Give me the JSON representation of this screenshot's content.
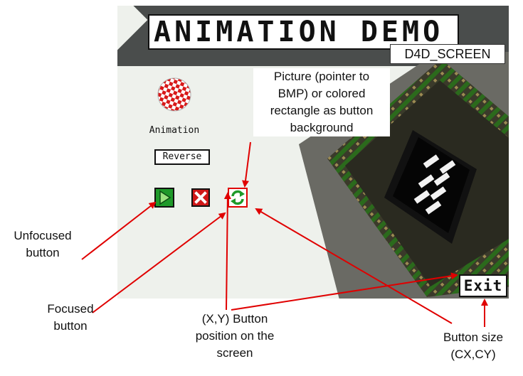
{
  "screen": {
    "title": "ANIMATION DEMO",
    "screen_name": "D4D_SCREEN",
    "animation_label": "Animation",
    "reverse_button": "Reverse",
    "exit_button": "Exit"
  },
  "icons": {
    "ball": "checkered-ball-icon",
    "play": "play-icon",
    "stop": "stop-icon",
    "reverse": "reverse-icon",
    "chip": "processor-chip-picture"
  },
  "annotations": {
    "picture_line1": "Picture (pointer to",
    "picture_line2": "BMP) or colored",
    "picture_line3": "rectangle as button",
    "picture_line4": "background",
    "unfocused_line1": "Unfocused",
    "unfocused_line2": "button",
    "focused_line1": "Focused",
    "focused_line2": "button",
    "position_line1": "(X,Y) Button",
    "position_line2": "position on the",
    "position_line3": "screen",
    "size_line1": "Button size",
    "size_line2": "(CX,CY)"
  },
  "colors": {
    "arrow": "#e00000",
    "header": "#4a4d4c",
    "screen_bg": "#eef1ec",
    "play_green": "#1f9a2a",
    "stop_red": "#d01818",
    "focus_outline": "#e00000"
  }
}
